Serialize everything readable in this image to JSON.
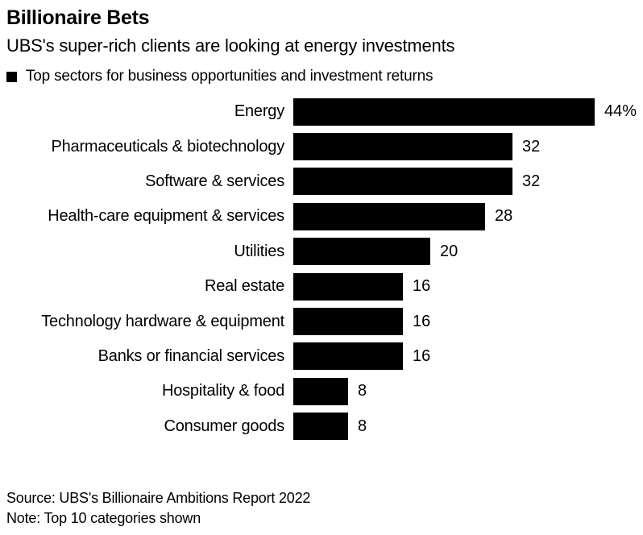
{
  "header": {
    "title": "Billionaire Bets",
    "subtitle": "UBS's super-rich clients are looking at energy investments",
    "legend": {
      "marker": "black-square",
      "label": "Top sectors for business opportunities and investment returns"
    }
  },
  "chart_data": {
    "type": "bar",
    "orientation": "horizontal",
    "title": "Billionaire Bets",
    "subtitle": "UBS's super-rich clients are looking at energy investments",
    "legend_entries": [
      "Top sectors for business opportunities and investment returns"
    ],
    "categories": [
      "Energy",
      "Pharmaceuticals & biotechnology",
      "Software & services",
      "Health-care equipment & services",
      "Utilities",
      "Real estate",
      "Technology hardware & equipment",
      "Banks or financial services",
      "Hospitality & food",
      "Consumer goods"
    ],
    "values": [
      44,
      32,
      32,
      28,
      20,
      16,
      16,
      16,
      8,
      8
    ],
    "value_labels": [
      "44%",
      "32",
      "32",
      "28",
      "20",
      "16",
      "16",
      "16",
      "8",
      "8"
    ],
    "unit": "percent",
    "xlim": [
      0,
      44
    ],
    "grid": false,
    "bar_color": "#000000",
    "background_color": "#ffffff",
    "legend_position": "top-left"
  },
  "footer": {
    "source": "Source: UBS's Billionaire Ambitions Report 2022",
    "note": "Note: Top 10 categories shown"
  },
  "colors": {
    "bar": "#000000",
    "text": "#000000",
    "background": "#ffffff"
  }
}
